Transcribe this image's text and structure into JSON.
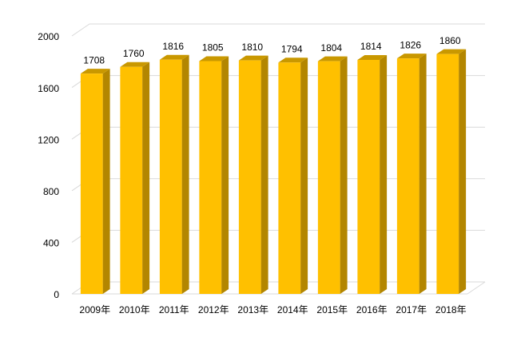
{
  "chart_data": {
    "type": "bar3d",
    "categories": [
      "2009年",
      "2010年",
      "2011年",
      "2012年",
      "2013年",
      "2014年",
      "2015年",
      "2016年",
      "2017年",
      "2018年"
    ],
    "values": [
      1708,
      1760,
      1816,
      1805,
      1810,
      1794,
      1804,
      1814,
      1826,
      1860
    ],
    "color": "#ffc000",
    "ylim": [
      0,
      2000
    ],
    "yticks": [
      0,
      400,
      800,
      1200,
      1600,
      2000
    ],
    "grid": true
  }
}
